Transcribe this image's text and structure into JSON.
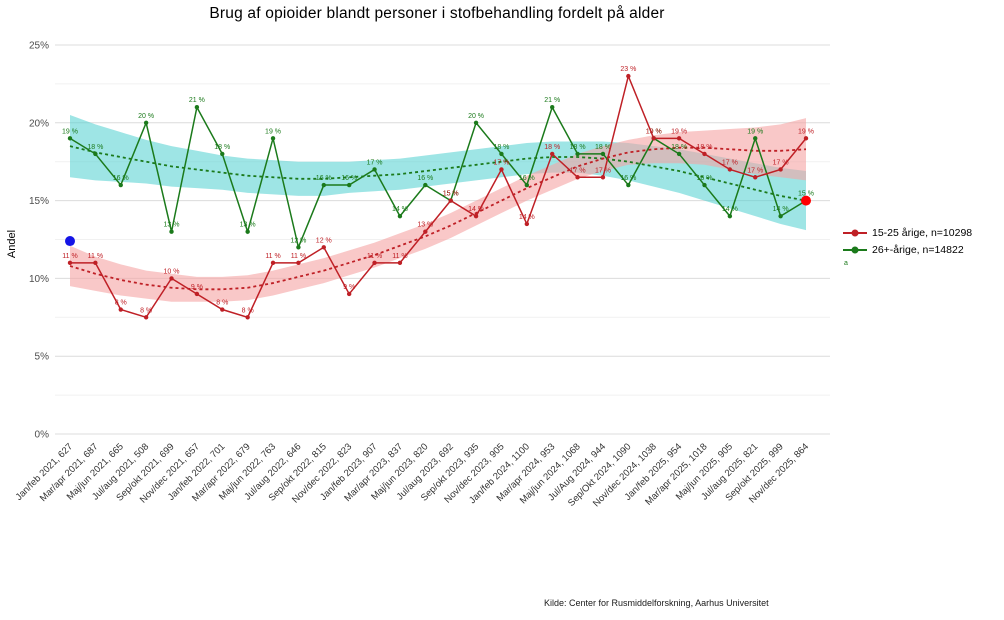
{
  "footer": {
    "source": "Kilde: Center for Rusmiddelforskning, Aarhus Universitet"
  },
  "chart_data": {
    "type": "line",
    "title": "Brug af opioider blandt personer i stofbehandling fordelt på alder",
    "ylabel": "Andel",
    "ylim": [
      0,
      25
    ],
    "y_ticks": [
      0,
      5,
      10,
      15,
      20,
      25
    ],
    "grid": "horizontal",
    "legend_position": "right",
    "legend_note": "a",
    "categories": [
      "Jan/feb 2021, 627",
      "Mar/apr 2021, 687",
      "Maj/jun 2021, 665",
      "Jul/aug 2021, 508",
      "Sep/okt 2021, 699",
      "Nov/dec 2021, 657",
      "Jan/feb 2022, 701",
      "Mar/apr 2022, 679",
      "Maj/jun 2022, 763",
      "Jul/aug 2022, 646",
      "Sep/okt 2022, 815",
      "Nov/dec 2022, 823",
      "Jan/feb 2023, 907",
      "Mar/apr 2023, 837",
      "Maj/jun 2023, 820",
      "Jul/aug 2023, 692",
      "Sep/okt 2023, 935",
      "Nov/dec 2023, 905",
      "Jan/feb 2024, 1100",
      "Mar/apr 2024, 953",
      "Maj/jun 2024, 1068",
      "Jul/Aug 2024, 944",
      "Sep/Okt 2024, 1090",
      "Nov/dec 2024, 1038",
      "Jan/feb 2025, 954",
      "Mar/apr 2025, 1018",
      "Maj/jun 2025, 905",
      "Jul/aug 2025, 821",
      "Sep/okt 2025, 999",
      "Nov/dec 2025, 864"
    ],
    "series": [
      {
        "name": "15-25 årige, n=10298",
        "color": "#bf2026",
        "band_color": "#f5a3a3",
        "band_opacity": 0.6,
        "values": [
          11,
          11,
          8,
          7.5,
          10,
          9,
          8,
          7.5,
          11,
          11,
          12,
          9,
          11,
          11,
          13,
          15,
          14,
          17,
          13.5,
          18,
          16.5,
          16.5,
          23,
          19,
          19,
          18,
          17,
          16.5,
          17,
          19
        ],
        "trend": [
          10.8,
          10.3,
          9.9,
          9.6,
          9.4,
          9.3,
          9.3,
          9.4,
          9.7,
          10.1,
          10.5,
          11.0,
          11.5,
          12.1,
          12.7,
          13.4,
          14.2,
          15.0,
          15.8,
          16.5,
          17.2,
          17.7,
          18.1,
          18.3,
          18.4,
          18.4,
          18.3,
          18.2,
          18.2,
          18.3
        ],
        "band_upper": [
          12.1,
          11.4,
          10.9,
          10.5,
          10.3,
          10.1,
          10.1,
          10.2,
          10.5,
          10.9,
          11.3,
          11.8,
          12.3,
          12.9,
          13.5,
          14.2,
          15.0,
          15.8,
          16.6,
          17.3,
          18.0,
          18.5,
          18.9,
          19.2,
          19.4,
          19.5,
          19.6,
          19.7,
          19.9,
          20.3
        ],
        "band_lower": [
          9.5,
          9.2,
          8.9,
          8.7,
          8.5,
          8.5,
          8.5,
          8.6,
          8.9,
          9.3,
          9.7,
          10.2,
          10.7,
          11.3,
          11.9,
          12.6,
          13.4,
          14.2,
          15.0,
          15.7,
          16.4,
          16.9,
          17.3,
          17.4,
          17.4,
          17.3,
          17.0,
          16.7,
          16.5,
          16.3
        ]
      },
      {
        "name": "26+-årige, n=14822",
        "color": "#1b7a1b",
        "band_color": "#4fd0cf",
        "band_opacity": 0.55,
        "values": [
          19,
          18,
          16,
          20,
          13,
          21,
          18,
          13,
          19,
          12,
          16,
          16,
          17,
          14,
          16,
          15,
          20,
          18,
          16,
          21,
          18,
          18,
          16,
          19,
          18,
          16,
          14,
          19,
          14,
          15
        ],
        "trend": [
          18.5,
          18.1,
          17.8,
          17.5,
          17.2,
          17.0,
          16.8,
          16.6,
          16.5,
          16.4,
          16.4,
          16.5,
          16.6,
          16.7,
          16.9,
          17.1,
          17.3,
          17.5,
          17.7,
          17.8,
          17.8,
          17.7,
          17.5,
          17.2,
          16.9,
          16.5,
          16.1,
          15.7,
          15.3,
          15.0
        ],
        "band_upper": [
          20.5,
          19.9,
          19.4,
          18.9,
          18.5,
          18.2,
          17.9,
          17.7,
          17.6,
          17.5,
          17.5,
          17.5,
          17.6,
          17.7,
          17.9,
          18.1,
          18.3,
          18.5,
          18.7,
          18.8,
          18.8,
          18.8,
          18.7,
          18.5,
          18.3,
          18.0,
          17.7,
          17.4,
          17.1,
          16.9
        ],
        "band_lower": [
          16.5,
          16.3,
          16.2,
          16.1,
          15.9,
          15.8,
          15.7,
          15.5,
          15.4,
          15.3,
          15.3,
          15.5,
          15.6,
          15.7,
          15.9,
          16.1,
          16.3,
          16.5,
          16.7,
          16.8,
          16.8,
          16.6,
          16.3,
          15.9,
          15.5,
          15.0,
          14.5,
          14.0,
          13.5,
          13.1
        ]
      }
    ],
    "markers": [
      {
        "name": "blue-marker",
        "color": "#1414e6",
        "index": 0,
        "value": 12.4
      },
      {
        "name": "red-marker",
        "color": "#ff0000",
        "index": 29,
        "value": 15
      }
    ]
  }
}
